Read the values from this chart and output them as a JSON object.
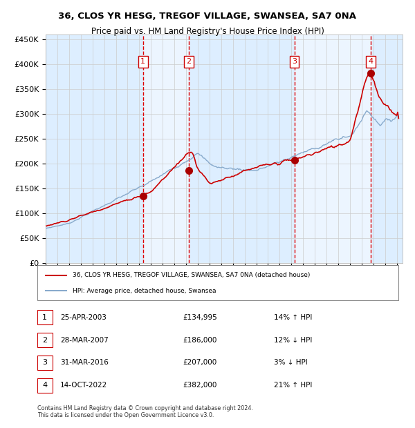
{
  "title_line1": "36, CLOS YR HESG, TREGOF VILLAGE, SWANSEA, SA7 0NA",
  "title_line2": "Price paid vs. HM Land Registry's House Price Index (HPI)",
  "ylim": [
    0,
    460000
  ],
  "yticks": [
    0,
    50000,
    100000,
    150000,
    200000,
    250000,
    300000,
    350000,
    400000,
    450000
  ],
  "xlim_start": 1995.0,
  "xlim_end": 2025.5,
  "sales": [
    {
      "num": 1,
      "date_label": "25-APR-2003",
      "year": 2003.32,
      "price": 134995,
      "hpi_pct": "14% ↑ HPI"
    },
    {
      "num": 2,
      "date_label": "28-MAR-2007",
      "year": 2007.24,
      "price": 186000,
      "hpi_pct": "12% ↓ HPI"
    },
    {
      "num": 3,
      "date_label": "31-MAR-2016",
      "year": 2016.25,
      "price": 207000,
      "hpi_pct": "3% ↓ HPI"
    },
    {
      "num": 4,
      "date_label": "14-OCT-2022",
      "year": 2022.79,
      "price": 382000,
      "hpi_pct": "21% ↑ HPI"
    }
  ],
  "property_line_color": "#cc0000",
  "hpi_line_color": "#88aacc",
  "sale_marker_color": "#aa0000",
  "vline_color": "#dd0000",
  "shade_color": "#ddeeff",
  "background_color": "#ffffff",
  "grid_color": "#cccccc",
  "legend_line1": "36, CLOS YR HESG, TREGOF VILLAGE, SWANSEA, SA7 0NA (detached house)",
  "legend_line2": "HPI: Average price, detached house, Swansea",
  "footnote": "Contains HM Land Registry data © Crown copyright and database right 2024.\nThis data is licensed under the Open Government Licence v3.0."
}
